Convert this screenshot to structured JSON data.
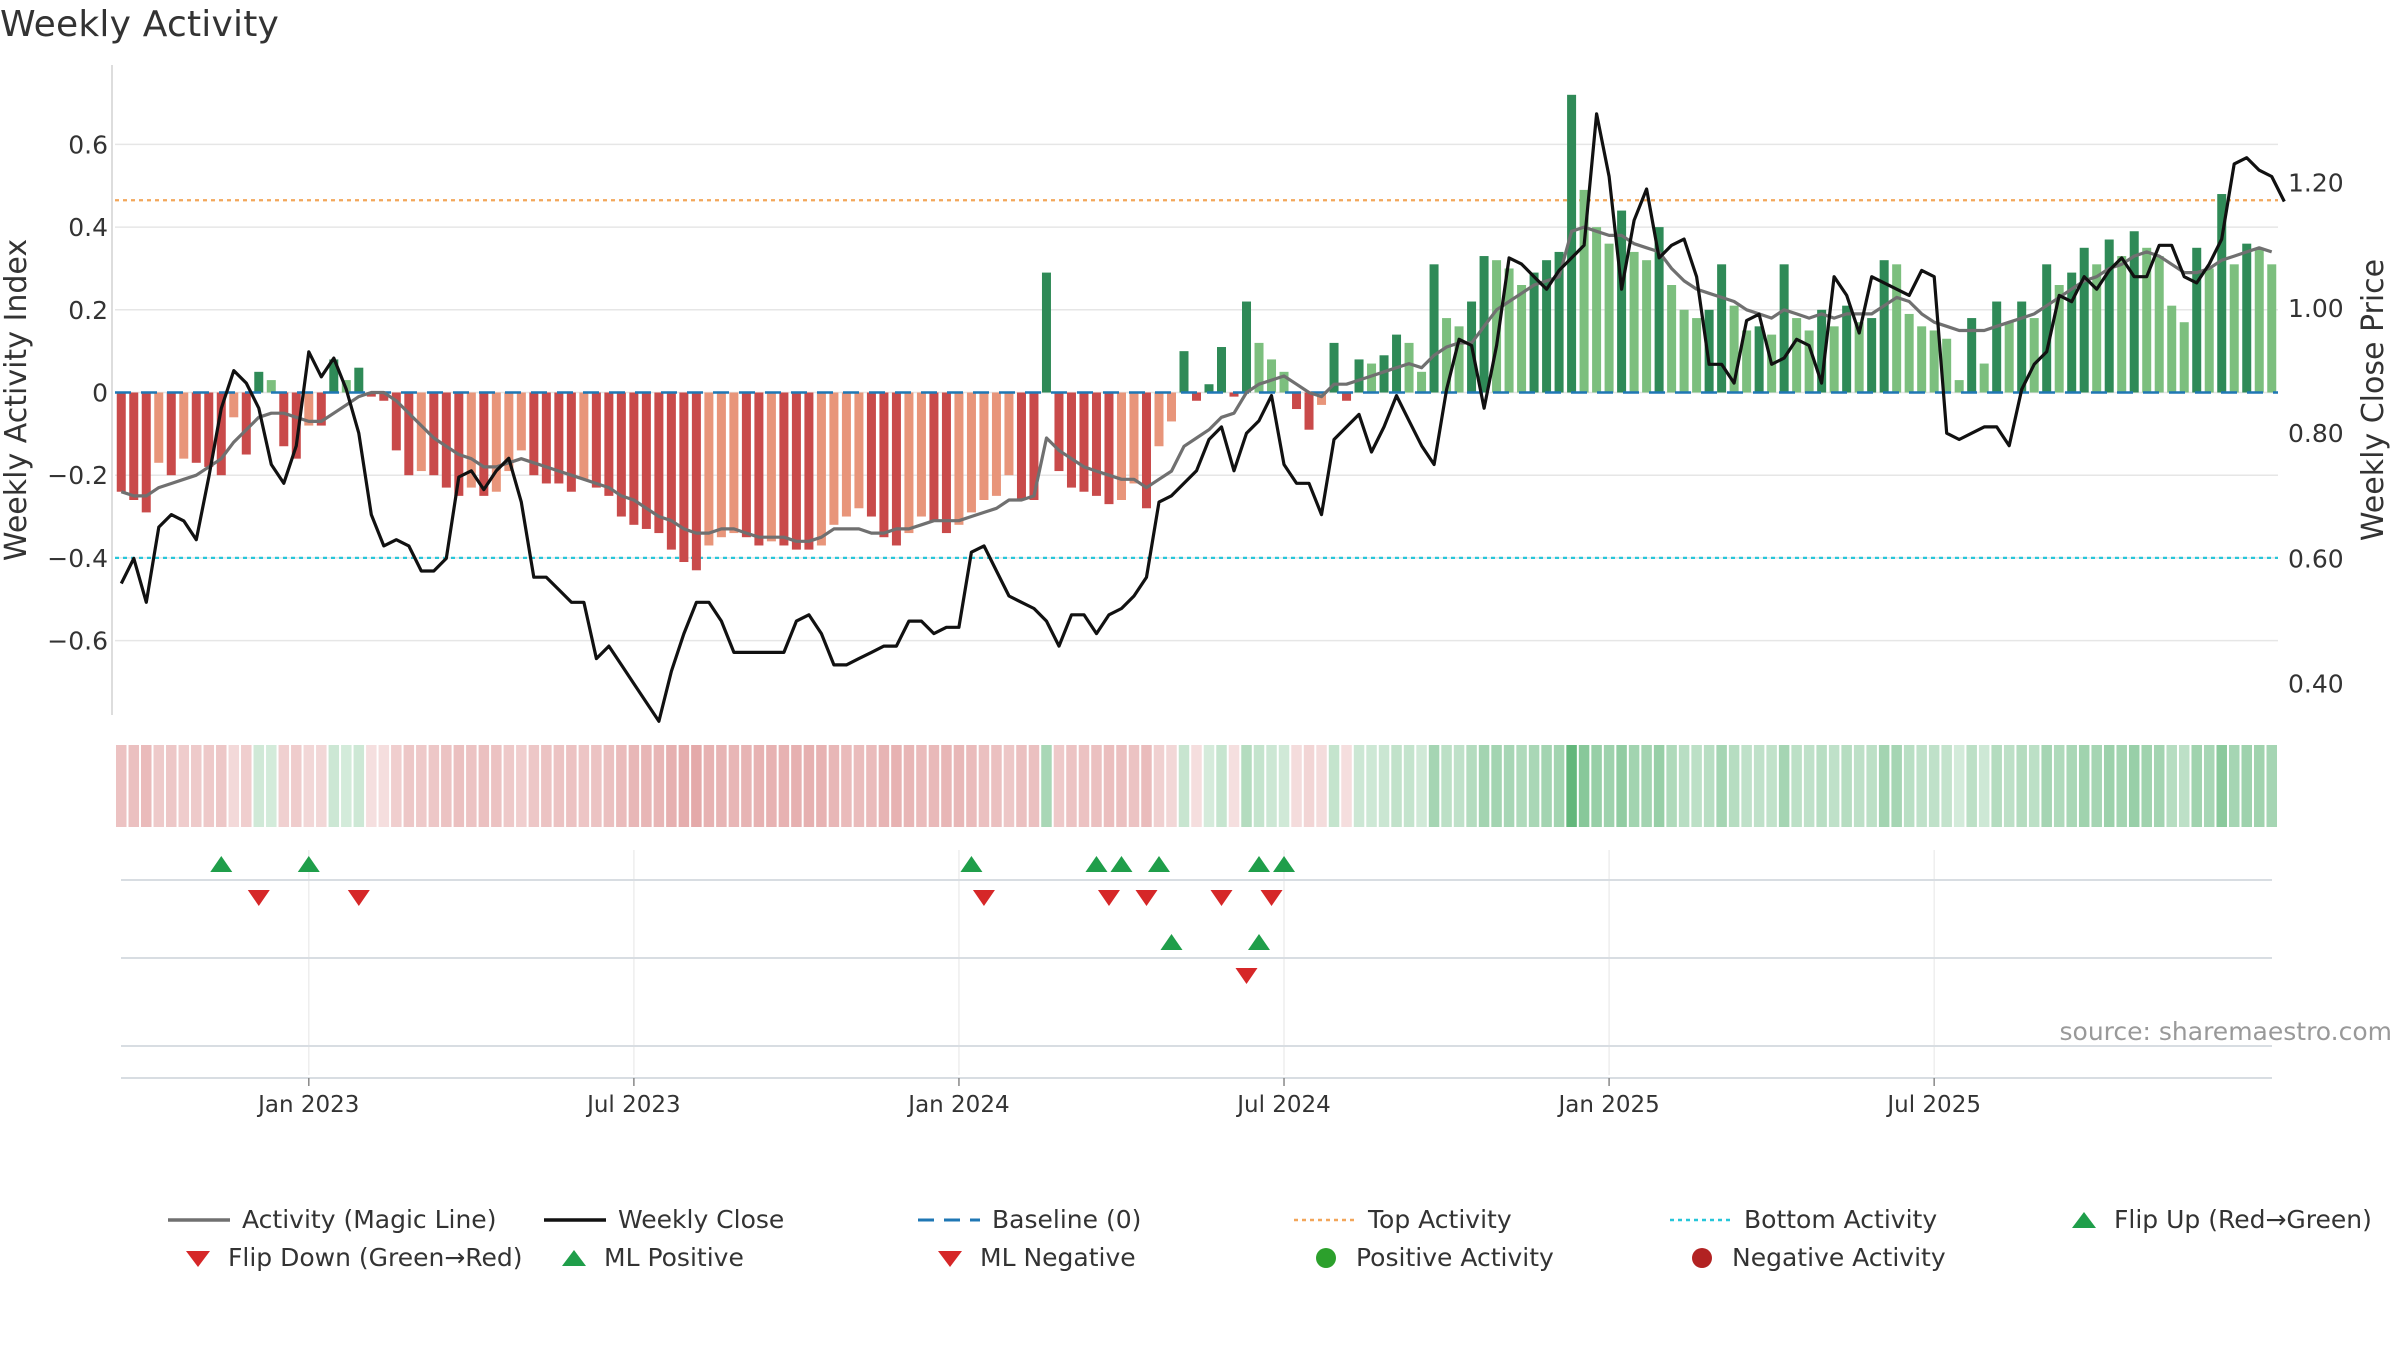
{
  "title": "Weekly Activity",
  "source": "source: sharemaestro.com",
  "colors": {
    "red": "#c94a4a",
    "redLight": "#e8957a",
    "green": "#2f8a57",
    "greenLight": "#7cbf7e",
    "magic": "#707070",
    "close": "#111111",
    "baseline": "#1f77b4",
    "top": "#f2a65a",
    "bottom": "#27c6d9",
    "flipUp": "#1f9e4a",
    "flipDown": "#d62728",
    "posDot": "#2ca02c",
    "negDot": "#b22222",
    "grid": "#e6e6e6"
  },
  "chart_data": {
    "type": "bar+line",
    "title": "Weekly Activity",
    "ylabel": "Weekly Activity Index",
    "y2label": "Weekly Close Price",
    "ylim": [
      -0.78,
      0.78
    ],
    "y2lim": [
      0.35,
      1.38
    ],
    "yticks": [
      -0.6,
      -0.4,
      -0.2,
      0,
      0.2,
      0.4,
      0.6
    ],
    "ytick_labels": [
      "−0.6",
      "−0.4",
      "−0.2",
      "0",
      "0.2",
      "0.4",
      "0.6"
    ],
    "y2ticks": [
      0.4,
      0.6,
      0.8,
      1.0,
      1.2
    ],
    "y2tick_labels": [
      "0.40",
      "0.60",
      "0.80",
      "1.00",
      "1.20"
    ],
    "xticks": [
      {
        "week": 15,
        "label": "Jan 2023"
      },
      {
        "week": 41,
        "label": "Jul 2023"
      },
      {
        "week": 67,
        "label": "Jan 2024"
      },
      {
        "week": 93,
        "label": "Jul 2024"
      },
      {
        "week": 119,
        "label": "Jan 2025"
      },
      {
        "week": 145,
        "label": "Jul 2025"
      }
    ],
    "top_activity": 0.465,
    "bottom_activity": -0.4,
    "baseline": 0,
    "activity": [
      -0.24,
      -0.26,
      -0.29,
      -0.17,
      -0.2,
      -0.16,
      -0.17,
      -0.18,
      -0.2,
      -0.06,
      -0.15,
      0.05,
      0.03,
      -0.13,
      -0.16,
      -0.08,
      -0.08,
      0.08,
      0.03,
      0.06,
      -0.01,
      -0.02,
      -0.14,
      -0.2,
      -0.19,
      -0.2,
      -0.23,
      -0.25,
      -0.23,
      -0.25,
      -0.24,
      -0.19,
      -0.14,
      -0.2,
      -0.22,
      -0.22,
      -0.24,
      -0.21,
      -0.23,
      -0.25,
      -0.3,
      -0.32,
      -0.33,
      -0.34,
      -0.38,
      -0.41,
      -0.43,
      -0.37,
      -0.35,
      -0.34,
      -0.35,
      -0.37,
      -0.36,
      -0.37,
      -0.38,
      -0.38,
      -0.37,
      -0.32,
      -0.3,
      -0.28,
      -0.3,
      -0.35,
      -0.37,
      -0.34,
      -0.3,
      -0.31,
      -0.34,
      -0.32,
      -0.29,
      -0.26,
      -0.25,
      -0.2,
      -0.26,
      -0.26,
      0.29,
      -0.19,
      -0.23,
      -0.24,
      -0.25,
      -0.27,
      -0.26,
      -0.22,
      -0.28,
      -0.13,
      -0.07,
      0.1,
      -0.02,
      0.02,
      0.11,
      -0.01,
      0.22,
      0.12,
      0.08,
      0.05,
      -0.04,
      -0.09,
      -0.03,
      0.12,
      -0.02,
      0.08,
      0.07,
      0.09,
      0.14,
      0.12,
      0.05,
      0.31,
      0.18,
      0.16,
      0.22,
      0.33,
      0.32,
      0.3,
      0.26,
      0.29,
      0.32,
      0.34,
      0.72,
      0.49,
      0.4,
      0.36,
      0.44,
      0.34,
      0.32,
      0.4,
      0.26,
      0.2,
      0.18,
      0.2,
      0.31,
      0.21,
      0.15,
      0.16,
      0.14,
      0.31,
      0.18,
      0.15,
      0.2,
      0.16,
      0.21,
      0.17,
      0.18,
      0.32,
      0.31,
      0.19,
      0.16,
      0.15,
      0.13,
      0.03,
      0.18,
      0.07,
      0.22,
      0.17,
      0.22,
      0.18,
      0.31,
      0.26,
      0.29,
      0.35,
      0.31,
      0.37,
      0.33,
      0.39,
      0.35,
      0.33,
      0.21,
      0.17,
      0.35,
      0.3,
      0.48,
      0.31,
      0.36,
      0.35,
      0.31
    ],
    "magic_line": [
      -0.24,
      -0.25,
      -0.25,
      -0.23,
      -0.22,
      -0.21,
      -0.2,
      -0.18,
      -0.16,
      -0.12,
      -0.09,
      -0.06,
      -0.05,
      -0.05,
      -0.06,
      -0.07,
      -0.07,
      -0.05,
      -0.03,
      -0.01,
      0.0,
      0.0,
      -0.02,
      -0.05,
      -0.08,
      -0.11,
      -0.13,
      -0.15,
      -0.16,
      -0.18,
      -0.18,
      -0.17,
      -0.16,
      -0.17,
      -0.18,
      -0.19,
      -0.2,
      -0.21,
      -0.22,
      -0.23,
      -0.25,
      -0.26,
      -0.28,
      -0.3,
      -0.31,
      -0.33,
      -0.34,
      -0.34,
      -0.33,
      -0.33,
      -0.34,
      -0.35,
      -0.35,
      -0.35,
      -0.36,
      -0.36,
      -0.35,
      -0.33,
      -0.33,
      -0.33,
      -0.34,
      -0.34,
      -0.33,
      -0.33,
      -0.32,
      -0.31,
      -0.31,
      -0.31,
      -0.3,
      -0.29,
      -0.28,
      -0.26,
      -0.26,
      -0.25,
      -0.11,
      -0.14,
      -0.16,
      -0.18,
      -0.19,
      -0.2,
      -0.21,
      -0.21,
      -0.23,
      -0.21,
      -0.19,
      -0.13,
      -0.11,
      -0.09,
      -0.06,
      -0.05,
      0.0,
      0.02,
      0.03,
      0.04,
      0.02,
      0.0,
      -0.01,
      0.02,
      0.02,
      0.03,
      0.04,
      0.05,
      0.06,
      0.07,
      0.06,
      0.09,
      0.11,
      0.12,
      0.12,
      0.16,
      0.2,
      0.22,
      0.24,
      0.26,
      0.27,
      0.28,
      0.39,
      0.4,
      0.39,
      0.38,
      0.38,
      0.36,
      0.35,
      0.34,
      0.3,
      0.27,
      0.25,
      0.24,
      0.23,
      0.22,
      0.2,
      0.19,
      0.18,
      0.2,
      0.19,
      0.18,
      0.19,
      0.18,
      0.19,
      0.19,
      0.19,
      0.21,
      0.23,
      0.22,
      0.19,
      0.17,
      0.16,
      0.15,
      0.15,
      0.15,
      0.16,
      0.17,
      0.18,
      0.19,
      0.21,
      0.23,
      0.25,
      0.27,
      0.28,
      0.3,
      0.31,
      0.33,
      0.34,
      0.33,
      0.31,
      0.29,
      0.29,
      0.3,
      0.32,
      0.33,
      0.34,
      0.35,
      0.34
    ],
    "weekly_close": [
      0.56,
      0.6,
      0.53,
      0.65,
      0.67,
      0.66,
      0.63,
      0.73,
      0.84,
      0.9,
      0.88,
      0.84,
      0.75,
      0.72,
      0.78,
      0.93,
      0.89,
      0.92,
      0.87,
      0.8,
      0.67,
      0.62,
      0.63,
      0.62,
      0.58,
      0.58,
      0.6,
      0.73,
      0.74,
      0.71,
      0.74,
      0.76,
      0.69,
      0.57,
      0.57,
      0.55,
      0.53,
      0.53,
      0.44,
      0.46,
      0.43,
      0.4,
      0.37,
      0.34,
      0.42,
      0.48,
      0.53,
      0.53,
      0.5,
      0.45,
      0.45,
      0.45,
      0.45,
      0.45,
      0.5,
      0.51,
      0.48,
      0.43,
      0.43,
      0.44,
      0.45,
      0.46,
      0.46,
      0.5,
      0.5,
      0.48,
      0.49,
      0.49,
      0.61,
      0.62,
      0.58,
      0.54,
      0.53,
      0.52,
      0.5,
      0.46,
      0.51,
      0.51,
      0.48,
      0.51,
      0.52,
      0.54,
      0.57,
      0.69,
      0.7,
      0.72,
      0.74,
      0.79,
      0.81,
      0.74,
      0.8,
      0.82,
      0.86,
      0.75,
      0.72,
      0.72,
      0.67,
      0.79,
      0.81,
      0.83,
      0.77,
      0.81,
      0.86,
      0.82,
      0.78,
      0.75,
      0.87,
      0.95,
      0.94,
      0.84,
      0.94,
      1.08,
      1.07,
      1.05,
      1.03,
      1.06,
      1.08,
      1.1,
      1.31,
      1.21,
      1.03,
      1.14,
      1.19,
      1.08,
      1.1,
      1.11,
      1.05,
      0.91,
      0.91,
      0.88,
      0.98,
      0.99,
      0.91,
      0.92,
      0.95,
      0.94,
      0.88,
      1.05,
      1.02,
      0.96,
      1.05,
      1.04,
      1.03,
      1.02,
      1.06,
      1.05,
      0.8,
      0.79,
      0.8,
      0.81,
      0.81,
      0.78,
      0.87,
      0.91,
      0.93,
      1.02,
      1.01,
      1.05,
      1.03,
      1.06,
      1.08,
      1.05,
      1.05,
      1.1,
      1.1,
      1.05,
      1.04,
      1.07,
      1.11,
      1.23,
      1.24,
      1.22,
      1.21,
      1.17
    ],
    "flip_up_weeks": [
      8,
      15,
      68,
      78,
      80,
      83,
      91,
      93
    ],
    "flip_down_weeks": [
      11,
      19,
      69,
      79,
      82,
      88,
      92
    ],
    "ml_positive_weeks": [
      84,
      91
    ],
    "ml_negative_weeks": [
      90
    ],
    "positive_activity_weeks": [],
    "negative_activity_weeks": []
  },
  "legend": {
    "row1": [
      "Activity (Magic Line)",
      "Weekly Close",
      "Baseline (0)",
      "Top Activity",
      "Bottom Activity",
      "Flip Up (Red→Green)"
    ],
    "row2": [
      "Flip Down (Green→Red)",
      "ML Positive",
      "ML Negative",
      "Positive Activity",
      "Negative Activity"
    ]
  }
}
